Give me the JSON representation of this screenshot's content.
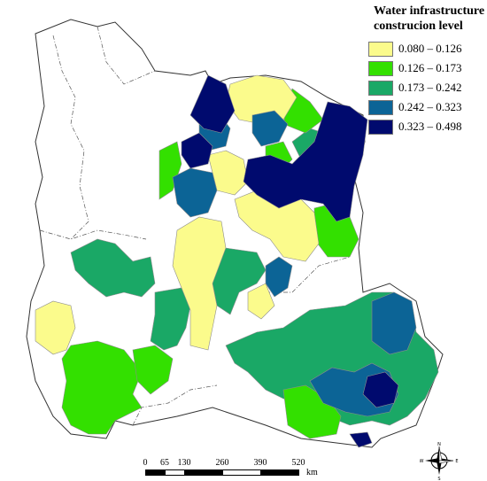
{
  "legend": {
    "title_line1": "Water infrastructure",
    "title_line2": "construcion level",
    "classes": [
      {
        "label": "0.080 – 0.126",
        "color": "#fbfb8c"
      },
      {
        "label": "0.126 – 0.173",
        "color": "#33e000"
      },
      {
        "label": "0.173 – 0.242",
        "color": "#1aa866"
      },
      {
        "label": "0.242 – 0.323",
        "color": "#0c6496"
      },
      {
        "label": "0.323 – 0.498",
        "color": "#000a6e"
      }
    ]
  },
  "scale": {
    "ticks": [
      "0",
      "65",
      "130",
      "260",
      "390",
      "520"
    ],
    "unit": "km"
  },
  "compass": {
    "n": "N",
    "s": "S",
    "e": "E",
    "w": "W"
  },
  "colors": {
    "no_data": "#ffffff",
    "boundary": "#8c8c8c"
  }
}
